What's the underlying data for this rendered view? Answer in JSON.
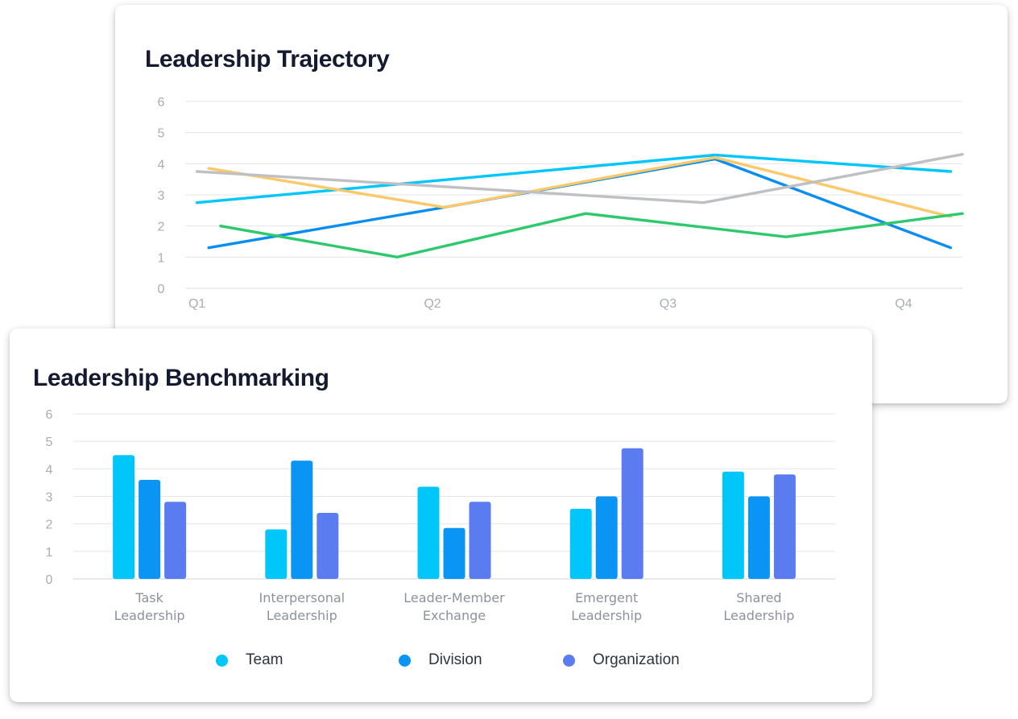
{
  "trajectory": {
    "title": "Leadership Trajectory",
    "chart_data": {
      "type": "line",
      "title": "Leadership Trajectory",
      "xlabel": "",
      "ylabel": "",
      "ylim": [
        0,
        6
      ],
      "yticks": [
        0,
        1,
        2,
        3,
        4,
        5,
        6
      ],
      "xlim": [
        0.95,
        4.25
      ],
      "xticks": [
        "Q1",
        "Q2",
        "Q3",
        "Q4"
      ],
      "grid": true,
      "series": [
        {
          "color": "#00c6fa",
          "x": [
            1,
            3.2,
            4.2
          ],
          "y": [
            2.75,
            4.28,
            3.75
          ]
        },
        {
          "color": "#0a8df0",
          "x": [
            1.05,
            2.05,
            3.2,
            4.2
          ],
          "y": [
            1.3,
            2.6,
            4.15,
            1.3
          ]
        },
        {
          "color": "#fbc96a",
          "x": [
            1.05,
            2.05,
            3.2,
            4.2
          ],
          "y": [
            3.85,
            2.6,
            4.2,
            2.3
          ]
        },
        {
          "color": "#bfc0c4",
          "x": [
            1,
            3.15,
            4.25
          ],
          "y": [
            3.75,
            2.75,
            4.3
          ]
        },
        {
          "color": "#2ec96c",
          "x": [
            1.1,
            1.85,
            2.65,
            3.5,
            4.25
          ],
          "y": [
            2.0,
            1.0,
            2.4,
            1.65,
            2.4
          ]
        }
      ]
    }
  },
  "benchmarking": {
    "title": "Leadership Benchmarking",
    "chart_data": {
      "type": "bar",
      "title": "Leadership Benchmarking",
      "xlabel": "",
      "ylabel": "",
      "ylim": [
        0,
        6
      ],
      "yticks": [
        0,
        1,
        2,
        3,
        4,
        5,
        6
      ],
      "grid": true,
      "legend_position": "bottom",
      "categories": [
        [
          "Task",
          "Leadership"
        ],
        [
          "Interpersonal",
          "Leadership"
        ],
        [
          "Leader-Member",
          "Exchange"
        ],
        [
          "Emergent",
          "Leadership"
        ],
        [
          "Shared",
          "Leadership"
        ]
      ],
      "series": [
        {
          "name": "Team",
          "color": "#00c6fa",
          "values": [
            4.5,
            1.8,
            3.35,
            2.55,
            3.9
          ]
        },
        {
          "name": "Division",
          "color": "#0a95f5",
          "values": [
            3.6,
            4.3,
            1.85,
            3.0,
            3.0
          ]
        },
        {
          "name": "Organization",
          "color": "#5b7cf0",
          "values": [
            2.8,
            2.4,
            2.8,
            4.75,
            3.8
          ]
        }
      ]
    }
  }
}
